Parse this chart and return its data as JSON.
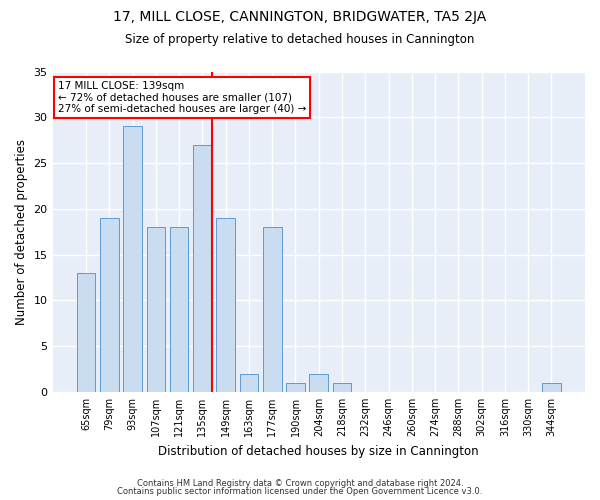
{
  "title1": "17, MILL CLOSE, CANNINGTON, BRIDGWATER, TA5 2JA",
  "title2": "Size of property relative to detached houses in Cannington",
  "xlabel": "Distribution of detached houses by size in Cannington",
  "ylabel": "Number of detached properties",
  "categories": [
    "65sqm",
    "79sqm",
    "93sqm",
    "107sqm",
    "121sqm",
    "135sqm",
    "149sqm",
    "163sqm",
    "177sqm",
    "190sqm",
    "204sqm",
    "218sqm",
    "232sqm",
    "246sqm",
    "260sqm",
    "274sqm",
    "288sqm",
    "302sqm",
    "316sqm",
    "330sqm",
    "344sqm"
  ],
  "values": [
    13,
    19,
    29,
    18,
    18,
    27,
    19,
    2,
    18,
    1,
    2,
    1,
    0,
    0,
    0,
    0,
    0,
    0,
    0,
    0,
    1
  ],
  "bar_color": "#c9dcf0",
  "bar_edge_color": "#5b9bd5",
  "annotation_text": "17 MILL CLOSE: 139sqm\n← 72% of detached houses are smaller (107)\n27% of semi-detached houses are larger (40) →",
  "annotation_box_color": "white",
  "annotation_box_edge_color": "red",
  "vline_color": "red",
  "vline_x_index": 5,
  "ylim": [
    0,
    35
  ],
  "yticks": [
    0,
    5,
    10,
    15,
    20,
    25,
    30,
    35
  ],
  "background_color": "#e8eef8",
  "grid_color": "white",
  "footer1": "Contains HM Land Registry data © Crown copyright and database right 2024.",
  "footer2": "Contains public sector information licensed under the Open Government Licence v3.0."
}
